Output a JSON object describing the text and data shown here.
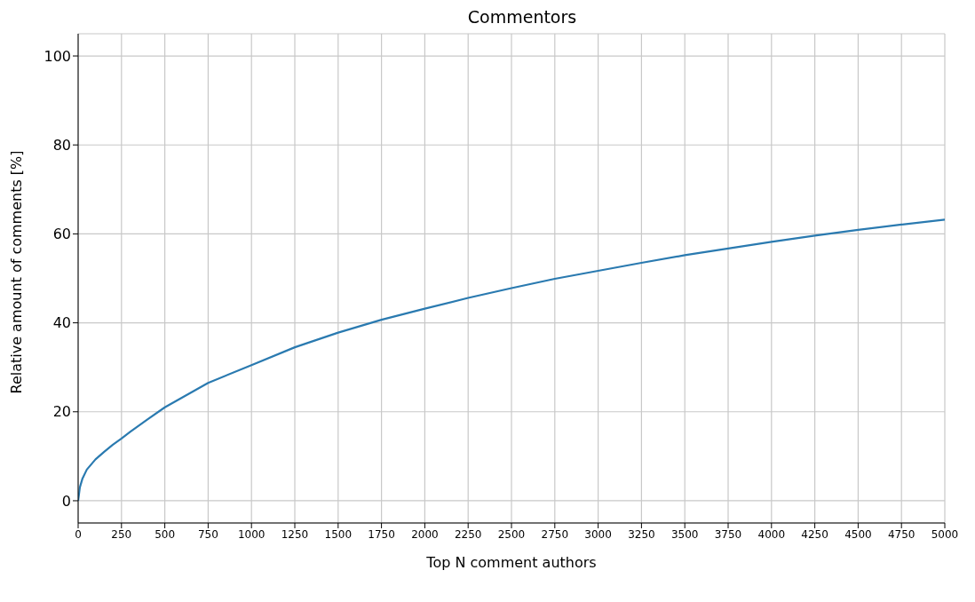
{
  "chart_data": {
    "type": "line",
    "title": "Commentors",
    "xlabel": "Top N comment authors",
    "ylabel": "Relative amount of comments [%]",
    "x": [
      0,
      10,
      25,
      50,
      100,
      150,
      200,
      250,
      300,
      400,
      500,
      750,
      1000,
      1250,
      1500,
      1750,
      2000,
      2250,
      2500,
      2750,
      3000,
      3250,
      3500,
      3750,
      4000,
      4250,
      4500,
      4750,
      5000
    ],
    "series": [
      {
        "color": "#2a7ab0",
        "values": [
          0,
          3,
          5,
          7,
          9.3,
          11,
          12.6,
          14,
          15.5,
          18.3,
          21,
          26.5,
          30.5,
          34.5,
          37.8,
          40.7,
          43.2,
          45.6,
          47.8,
          49.9,
          51.7,
          53.5,
          55.2,
          56.7,
          58.2,
          59.6,
          60.9,
          62.1,
          63.2
        ]
      }
    ],
    "xlim": [
      0,
      5000
    ],
    "xticks": [
      0,
      250,
      500,
      750,
      1000,
      1250,
      1500,
      1750,
      2000,
      2250,
      2500,
      2750,
      3000,
      3250,
      3500,
      3750,
      4000,
      4250,
      4500,
      4750,
      5000
    ],
    "ylim": [
      -5,
      105
    ],
    "yticks": [
      0,
      20,
      40,
      60,
      80,
      100
    ],
    "grid": true,
    "legend": false,
    "marker": "none",
    "line_style": "solid"
  }
}
